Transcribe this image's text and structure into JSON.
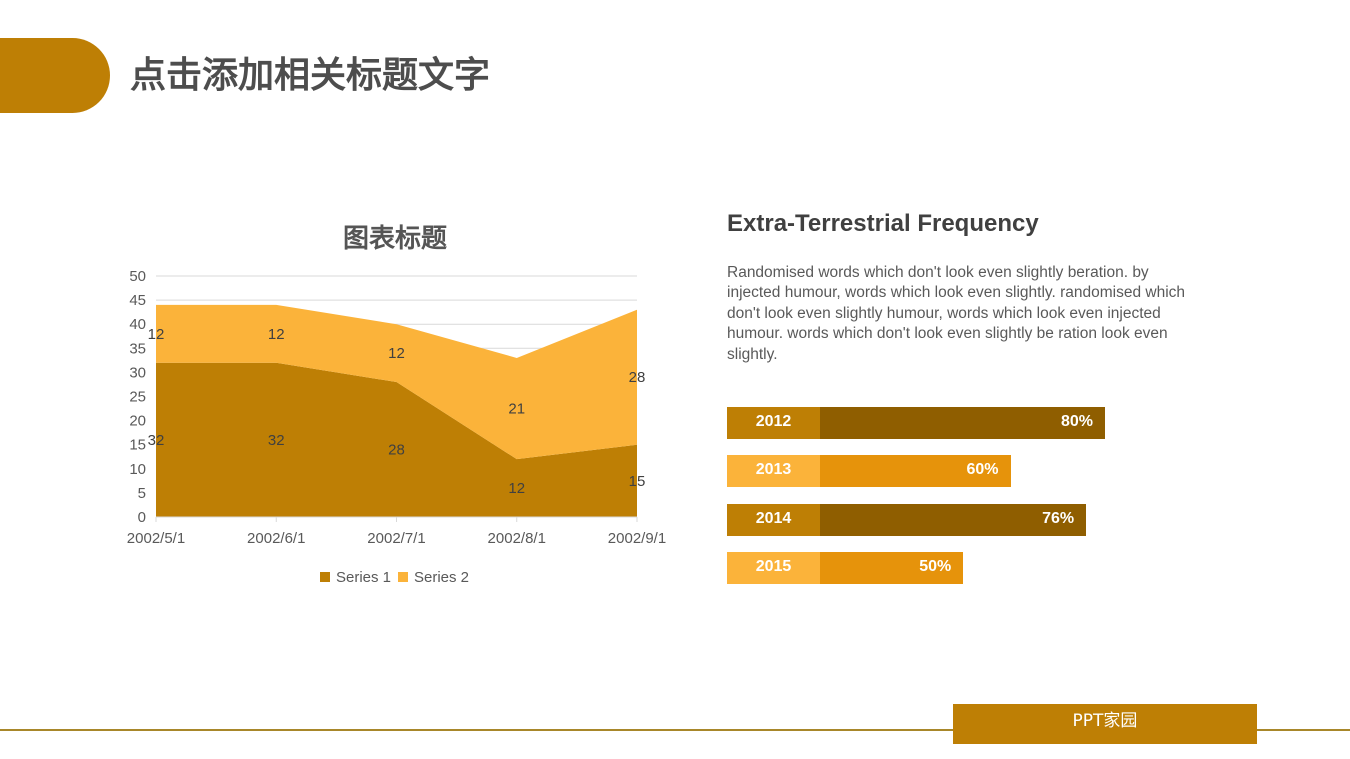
{
  "header": {
    "title": "点击添加相关标题文字"
  },
  "chart_data": {
    "type": "area",
    "stacked": true,
    "title": "图表标题",
    "categories": [
      "2002/5/1",
      "2002/6/1",
      "2002/7/1",
      "2002/8/1",
      "2002/9/1"
    ],
    "series": [
      {
        "name": "Series 1",
        "values": [
          32,
          32,
          28,
          12,
          15
        ],
        "color": "#BE7F05"
      },
      {
        "name": "Series 2",
        "values": [
          12,
          12,
          12,
          21,
          28
        ],
        "color": "#FBB33A"
      }
    ],
    "xlabel": "",
    "ylabel": "",
    "ylim": [
      0,
      50
    ],
    "yticks": [
      0,
      5,
      10,
      15,
      20,
      25,
      30,
      35,
      40,
      45,
      50
    ],
    "grid": true,
    "legend_position": "bottom",
    "data_labels": true
  },
  "info": {
    "title": "Extra-Terrestrial Frequency",
    "body": "Randomised words which don't look even slightly beration. by injected humour, words which look even slightly. randomised which don't look even slightly humour, words which look even injected humour. words which don't look even slightly be ration look even slightly."
  },
  "bars": [
    {
      "year": "2012",
      "value": "80%",
      "pct": 80,
      "year_color": "#BE7F05",
      "fill_color": "#8F5E00"
    },
    {
      "year": "2013",
      "value": "60%",
      "pct": 60,
      "year_color": "#FBB33A",
      "fill_color": "#E6930B"
    },
    {
      "year": "2014",
      "value": "76%",
      "pct": 76,
      "year_color": "#BE7F05",
      "fill_color": "#8F5E00"
    },
    {
      "year": "2015",
      "value": "50%",
      "pct": 50,
      "year_color": "#FBB33A",
      "fill_color": "#E6930B"
    }
  ],
  "footer": {
    "label": "PPT家园"
  },
  "colors": {
    "accent": "#BE7F05",
    "accent_light": "#FBB33A",
    "text": "#4D4D4D"
  }
}
